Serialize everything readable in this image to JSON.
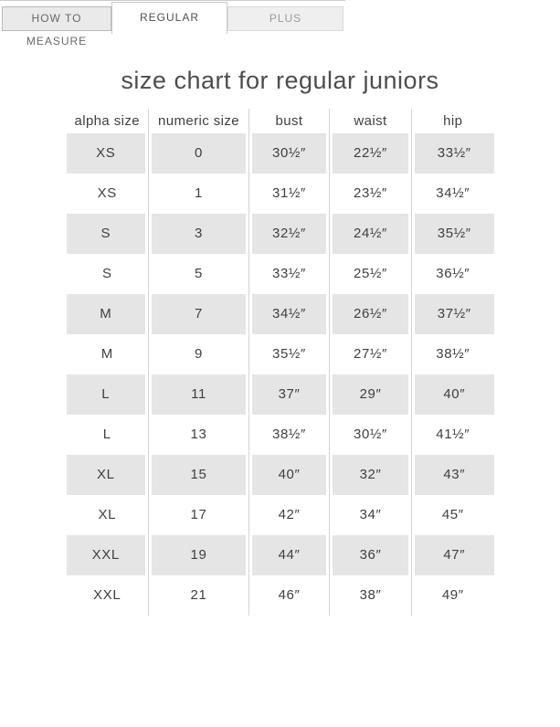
{
  "tabs": [
    "HOW TO MEASURE",
    "REGULAR",
    "PLUS"
  ],
  "active_tab": "REGULAR",
  "title": "size chart for regular juniors",
  "table": {
    "headers": [
      "alpha size",
      "numeric size",
      "bust",
      "waist",
      "hip"
    ],
    "rows": [
      [
        "XS",
        "0",
        "30½″",
        "22½″",
        "33½″"
      ],
      [
        "XS",
        "1",
        "31½″",
        "23½″",
        "34½″"
      ],
      [
        "S",
        "3",
        "32½″",
        "24½″",
        "35½″"
      ],
      [
        "S",
        "5",
        "33½″",
        "25½″",
        "36½″"
      ],
      [
        "M",
        "7",
        "34½″",
        "26½″",
        "37½″"
      ],
      [
        "M",
        "9",
        "35½″",
        "27½″",
        "38½″"
      ],
      [
        "L",
        "11",
        "37″",
        "29″",
        "40″"
      ],
      [
        "L",
        "13",
        "38½″",
        "30½″",
        "41½″"
      ],
      [
        "XL",
        "15",
        "40″",
        "32″",
        "43″"
      ],
      [
        "XL",
        "17",
        "42″",
        "34″",
        "45″"
      ],
      [
        "XXL",
        "19",
        "44″",
        "36″",
        "47″"
      ],
      [
        "XXL",
        "21",
        "46″",
        "38″",
        "49″"
      ]
    ]
  },
  "colors": {
    "stripe_row": "#e5e5e5",
    "grid_line": "#d4d4d4",
    "text": "#3f3f3f",
    "tab_inactive_bg": "#eaeaea",
    "tab_active_bg": "#ffffff"
  }
}
